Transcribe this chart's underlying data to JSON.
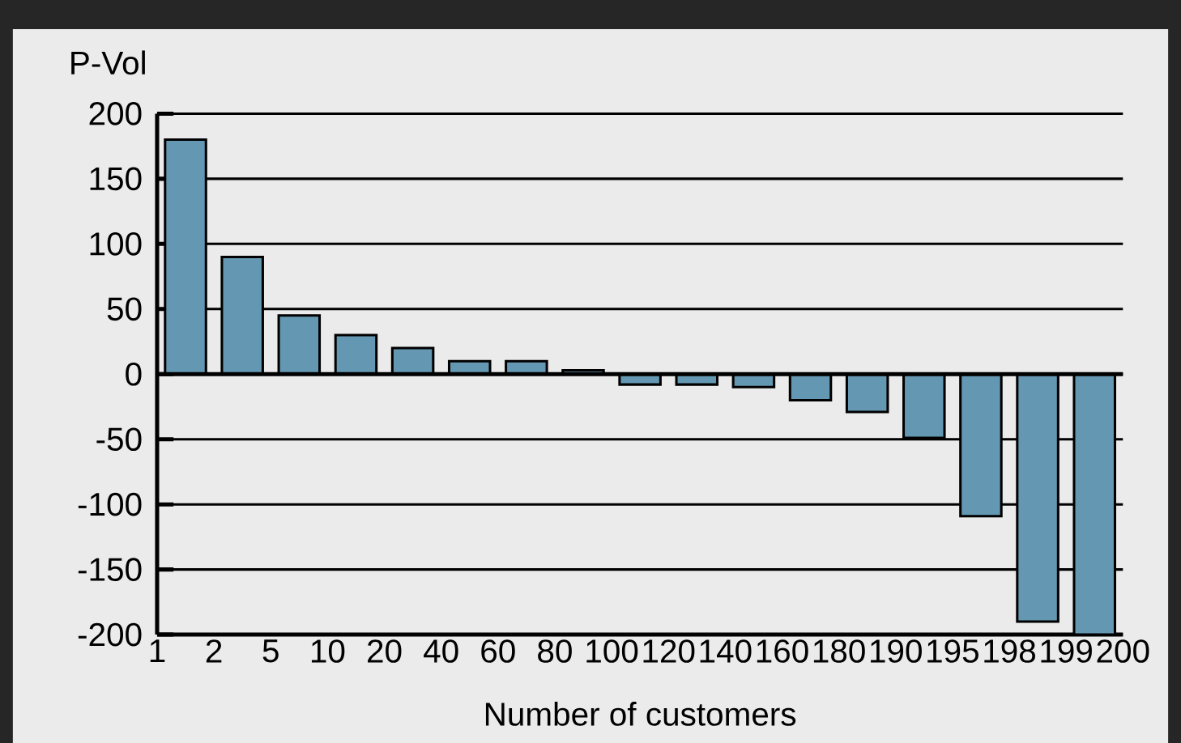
{
  "chart_data": {
    "type": "bar",
    "ylabel": "P-Vol",
    "xlabel": "Number of customers",
    "categories": [
      null,
      null,
      null,
      null,
      null,
      null,
      null,
      null,
      null,
      null,
      null,
      null,
      null,
      null,
      null,
      null,
      null
    ],
    "values": [
      180,
      90,
      45,
      30,
      20,
      10,
      10,
      3,
      -8,
      -8,
      -10,
      -20,
      -29,
      -49,
      -109,
      -190,
      -200
    ],
    "color": "#6497b1",
    "annotations": [
      "1",
      "2",
      "5",
      "10",
      "20",
      "40",
      "60",
      "80",
      "100",
      "120",
      "140",
      "160",
      "180",
      "190",
      "195",
      "198",
      "199",
      "200"
    ],
    "ylim": [
      -200,
      200
    ],
    "yticks": [
      -200,
      -150,
      -100,
      -50,
      0,
      50,
      100,
      150,
      200
    ],
    "grid": "y"
  }
}
